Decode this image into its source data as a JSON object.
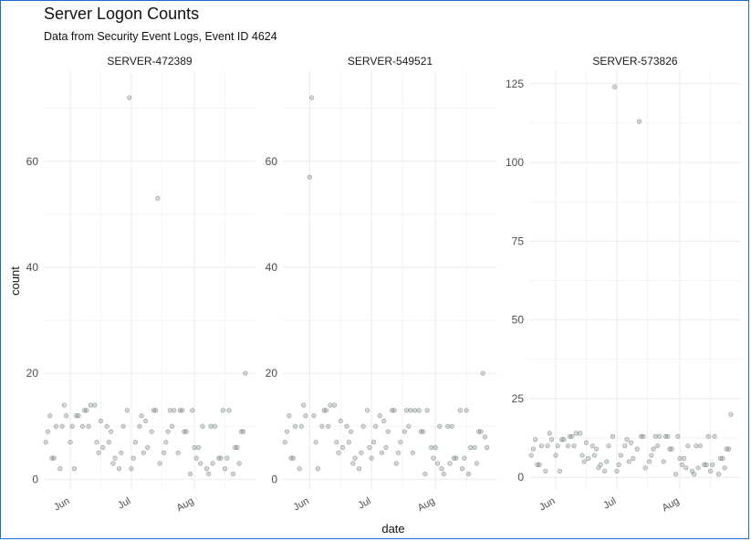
{
  "title": "Server Logon Counts",
  "subtitle": "Data from Security Event Logs, Event ID 4624",
  "chart_data": {
    "type": "scatter",
    "title": "Server Logon Counts",
    "subtitle": "Data from Security Event Logs, Event ID 4624",
    "xlabel": "date",
    "ylabel": "count",
    "x_ticks": [
      "Jun",
      "Jul",
      "Aug"
    ],
    "x_tick_dates": [
      "2023-06-01",
      "2023-07-01",
      "2023-08-01"
    ],
    "xlim": [
      "2023-05-19",
      "2023-08-31"
    ],
    "facet_scales": "free_y",
    "grid": true,
    "point_color": "#7f8c8d",
    "panel_grid_color": "#ebebeb",
    "panels": [
      {
        "label": "SERVER-472389",
        "ylim": [
          -2,
          77
        ],
        "y_ticks": [
          0,
          20,
          40,
          60
        ],
        "x": [
          "2023-05-20",
          "2023-05-21",
          "2023-05-22",
          "2023-05-23",
          "2023-05-24",
          "2023-05-25",
          "2023-05-27",
          "2023-05-28",
          "2023-05-29",
          "2023-05-30",
          "2023-06-01",
          "2023-06-02",
          "2023-06-03",
          "2023-06-04",
          "2023-06-05",
          "2023-06-07",
          "2023-06-08",
          "2023-06-09",
          "2023-06-10",
          "2023-06-11",
          "2023-06-13",
          "2023-06-14",
          "2023-06-15",
          "2023-06-16",
          "2023-06-17",
          "2023-06-19",
          "2023-06-20",
          "2023-06-21",
          "2023-06-22",
          "2023-06-23",
          "2023-06-25",
          "2023-06-26",
          "2023-06-27",
          "2023-06-29",
          "2023-06-30",
          "2023-07-01",
          "2023-07-02",
          "2023-07-03",
          "2023-07-05",
          "2023-07-06",
          "2023-07-07",
          "2023-07-08",
          "2023-07-09",
          "2023-07-11",
          "2023-07-12",
          "2023-07-13",
          "2023-07-14",
          "2023-07-15",
          "2023-07-17",
          "2023-07-18",
          "2023-07-19",
          "2023-07-20",
          "2023-07-21",
          "2023-07-22",
          "2023-07-24",
          "2023-07-25",
          "2023-07-26",
          "2023-07-27",
          "2023-07-28",
          "2023-07-30",
          "2023-07-31",
          "2023-08-01",
          "2023-08-02",
          "2023-08-03",
          "2023-08-04",
          "2023-08-05",
          "2023-08-07",
          "2023-08-08",
          "2023-08-09",
          "2023-08-10",
          "2023-08-11",
          "2023-08-13",
          "2023-08-14",
          "2023-08-15",
          "2023-08-16",
          "2023-08-17",
          "2023-08-18",
          "2023-08-20",
          "2023-08-21",
          "2023-08-22",
          "2023-08-23",
          "2023-08-24",
          "2023-08-25",
          "2023-08-26"
        ],
        "y": [
          7,
          9,
          12,
          4,
          4,
          10,
          2,
          10,
          14,
          12,
          7,
          10,
          2,
          12,
          12,
          10,
          13,
          13,
          10,
          14,
          14,
          7,
          5,
          11,
          6,
          10,
          7,
          9,
          3,
          4,
          2,
          5,
          10,
          13,
          72,
          2,
          4,
          7,
          10,
          12,
          5,
          11,
          6,
          9,
          13,
          13,
          53,
          3,
          5,
          7,
          9,
          13,
          10,
          13,
          5,
          13,
          13,
          9,
          9,
          1,
          13,
          6,
          4,
          6,
          3,
          10,
          2,
          1,
          10,
          3,
          10,
          4,
          4,
          13,
          2,
          4,
          13,
          1,
          6,
          6,
          3,
          9,
          9,
          20
        ]
      },
      {
        "label": "SERVER-549521",
        "ylim": [
          -2,
          77
        ],
        "y_ticks": [
          0,
          20,
          40,
          60
        ],
        "x": [
          "2023-05-20",
          "2023-05-21",
          "2023-05-22",
          "2023-05-23",
          "2023-05-24",
          "2023-05-25",
          "2023-05-27",
          "2023-05-28",
          "2023-05-29",
          "2023-05-30",
          "2023-06-01",
          "2023-06-02",
          "2023-06-03",
          "2023-06-04",
          "2023-06-05",
          "2023-06-07",
          "2023-06-08",
          "2023-06-09",
          "2023-06-10",
          "2023-06-11",
          "2023-06-13",
          "2023-06-14",
          "2023-06-15",
          "2023-06-16",
          "2023-06-17",
          "2023-06-19",
          "2023-06-20",
          "2023-06-21",
          "2023-06-22",
          "2023-06-23",
          "2023-06-25",
          "2023-06-26",
          "2023-06-27",
          "2023-06-29",
          "2023-06-30",
          "2023-07-01",
          "2023-07-02",
          "2023-07-03",
          "2023-07-05",
          "2023-07-06",
          "2023-07-07",
          "2023-07-08",
          "2023-07-09",
          "2023-07-11",
          "2023-07-12",
          "2023-07-13",
          "2023-07-14",
          "2023-07-15",
          "2023-07-17",
          "2023-07-18",
          "2023-07-19",
          "2023-07-20",
          "2023-07-21",
          "2023-07-22",
          "2023-07-24",
          "2023-07-25",
          "2023-07-26",
          "2023-07-27",
          "2023-07-28",
          "2023-07-30",
          "2023-07-31",
          "2023-08-01",
          "2023-08-02",
          "2023-08-03",
          "2023-08-04",
          "2023-08-05",
          "2023-08-07",
          "2023-08-08",
          "2023-08-09",
          "2023-08-10",
          "2023-08-11",
          "2023-08-13",
          "2023-08-14",
          "2023-08-15",
          "2023-08-16",
          "2023-08-17",
          "2023-08-18",
          "2023-08-20",
          "2023-08-21",
          "2023-08-22",
          "2023-08-23",
          "2023-08-24",
          "2023-08-25",
          "2023-08-26"
        ],
        "y": [
          7,
          9,
          12,
          4,
          4,
          10,
          2,
          10,
          14,
          12,
          57,
          72,
          12,
          7,
          2,
          10,
          13,
          13,
          10,
          14,
          14,
          7,
          5,
          11,
          6,
          10,
          7,
          9,
          3,
          4,
          2,
          5,
          10,
          13,
          6,
          4,
          7,
          10,
          12,
          5,
          11,
          6,
          9,
          13,
          13,
          3,
          5,
          7,
          9,
          13,
          10,
          13,
          5,
          13,
          13,
          9,
          9,
          1,
          13,
          6,
          4,
          6,
          3,
          10,
          2,
          1,
          10,
          3,
          10,
          4,
          4,
          13,
          2,
          4,
          13,
          1,
          6,
          6,
          3,
          9,
          9,
          20,
          8,
          6
        ]
      },
      {
        "label": "SERVER-573826",
        "ylim": [
          -4,
          129
        ],
        "y_ticks": [
          0,
          25,
          50,
          75,
          100,
          125
        ],
        "x": [
          "2023-05-20",
          "2023-05-21",
          "2023-05-22",
          "2023-05-23",
          "2023-05-24",
          "2023-05-25",
          "2023-05-27",
          "2023-05-28",
          "2023-05-29",
          "2023-05-30",
          "2023-06-01",
          "2023-06-02",
          "2023-06-03",
          "2023-06-04",
          "2023-06-05",
          "2023-06-07",
          "2023-06-08",
          "2023-06-09",
          "2023-06-10",
          "2023-06-11",
          "2023-06-13",
          "2023-06-14",
          "2023-06-15",
          "2023-06-16",
          "2023-06-17",
          "2023-06-19",
          "2023-06-20",
          "2023-06-21",
          "2023-06-22",
          "2023-06-23",
          "2023-06-25",
          "2023-06-26",
          "2023-06-27",
          "2023-06-29",
          "2023-06-30",
          "2023-07-01",
          "2023-07-02",
          "2023-07-03",
          "2023-07-05",
          "2023-07-06",
          "2023-07-07",
          "2023-07-08",
          "2023-07-09",
          "2023-07-11",
          "2023-07-12",
          "2023-07-13",
          "2023-07-14",
          "2023-07-15",
          "2023-07-17",
          "2023-07-18",
          "2023-07-19",
          "2023-07-20",
          "2023-07-21",
          "2023-07-22",
          "2023-07-24",
          "2023-07-25",
          "2023-07-26",
          "2023-07-27",
          "2023-07-28",
          "2023-07-30",
          "2023-07-31",
          "2023-08-01",
          "2023-08-02",
          "2023-08-03",
          "2023-08-04",
          "2023-08-05",
          "2023-08-07",
          "2023-08-08",
          "2023-08-09",
          "2023-08-10",
          "2023-08-11",
          "2023-08-13",
          "2023-08-14",
          "2023-08-15",
          "2023-08-16",
          "2023-08-17",
          "2023-08-18",
          "2023-08-20",
          "2023-08-21",
          "2023-08-22",
          "2023-08-23",
          "2023-08-24",
          "2023-08-25",
          "2023-08-26"
        ],
        "y": [
          7,
          9,
          12,
          4,
          4,
          10,
          2,
          10,
          14,
          12,
          7,
          10,
          2,
          12,
          12,
          10,
          13,
          13,
          10,
          14,
          14,
          7,
          5,
          11,
          6,
          10,
          7,
          9,
          3,
          4,
          2,
          5,
          10,
          13,
          124,
          2,
          4,
          7,
          10,
          12,
          5,
          11,
          6,
          9,
          113,
          13,
          13,
          3,
          5,
          7,
          9,
          13,
          10,
          13,
          5,
          13,
          13,
          9,
          9,
          1,
          13,
          6,
          4,
          6,
          3,
          10,
          2,
          1,
          10,
          3,
          10,
          4,
          4,
          13,
          2,
          4,
          13,
          1,
          6,
          6,
          3,
          9,
          9,
          20
        ]
      }
    ]
  }
}
